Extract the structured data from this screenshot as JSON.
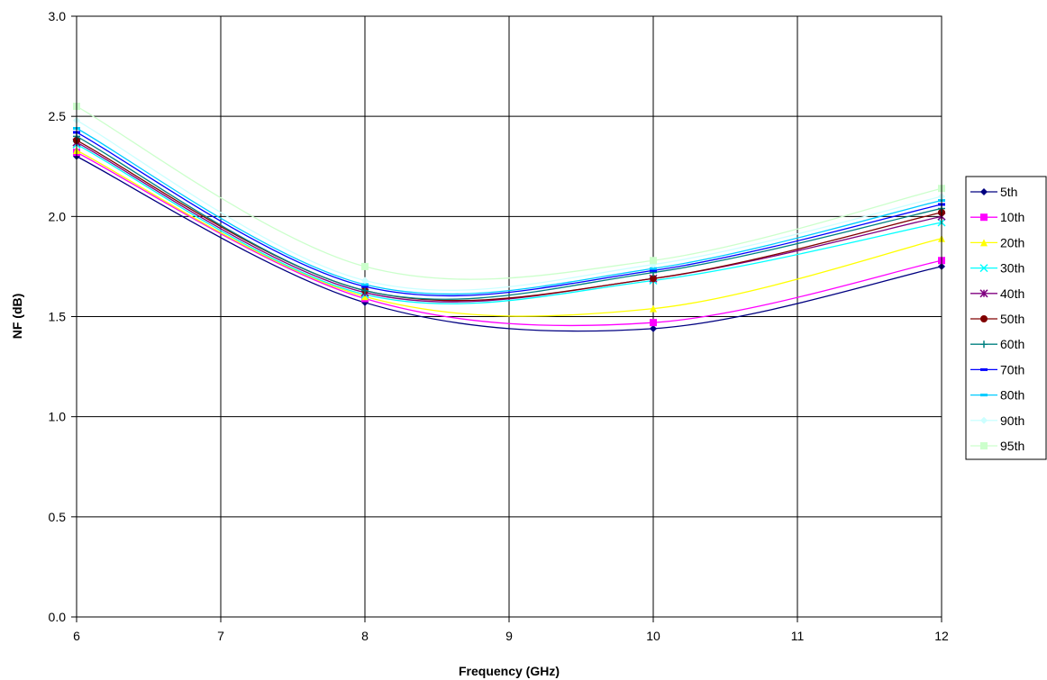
{
  "chart_data": {
    "type": "line",
    "title": "",
    "xlabel": "Frequency (GHz)",
    "ylabel": "NF (dB)",
    "x": [
      6,
      8,
      10,
      12
    ],
    "xlim": [
      6,
      12
    ],
    "ylim": [
      0.0,
      3.0
    ],
    "x_ticks": [
      "6",
      "7",
      "8",
      "9",
      "10",
      "11",
      "12"
    ],
    "y_ticks": [
      "0.0",
      "0.5",
      "1.0",
      "1.5",
      "2.0",
      "2.5",
      "3.0"
    ],
    "grid": true,
    "smooth": true,
    "legend_position": "right",
    "series": [
      {
        "name": "5th",
        "values": [
          2.3,
          1.57,
          1.44,
          1.75
        ],
        "color": "#000080",
        "marker": "diamond"
      },
      {
        "name": "10th",
        "values": [
          2.32,
          1.59,
          1.47,
          1.78
        ],
        "color": "#ff00ff",
        "marker": "square"
      },
      {
        "name": "20th",
        "values": [
          2.33,
          1.6,
          1.54,
          1.89
        ],
        "color": "#ffff00",
        "marker": "triangle"
      },
      {
        "name": "30th",
        "values": [
          2.36,
          1.61,
          1.68,
          1.97
        ],
        "color": "#00ffff",
        "marker": "x"
      },
      {
        "name": "40th",
        "values": [
          2.37,
          1.62,
          1.69,
          2.0
        ],
        "color": "#800080",
        "marker": "star"
      },
      {
        "name": "50th",
        "values": [
          2.38,
          1.63,
          1.69,
          2.02
        ],
        "color": "#800000",
        "marker": "circle"
      },
      {
        "name": "60th",
        "values": [
          2.4,
          1.63,
          1.72,
          2.04
        ],
        "color": "#008080",
        "marker": "plus"
      },
      {
        "name": "70th",
        "values": [
          2.42,
          1.65,
          1.73,
          2.06
        ],
        "color": "#0000ff",
        "marker": "dash"
      },
      {
        "name": "80th",
        "values": [
          2.44,
          1.66,
          1.74,
          2.08
        ],
        "color": "#00ccff",
        "marker": "dash"
      },
      {
        "name": "90th",
        "values": [
          2.48,
          1.68,
          1.76,
          2.1
        ],
        "color": "#ccffff",
        "marker": "diamond"
      },
      {
        "name": "95th",
        "values": [
          2.55,
          1.75,
          1.78,
          2.14
        ],
        "color": "#ccffcc",
        "marker": "square"
      }
    ]
  }
}
